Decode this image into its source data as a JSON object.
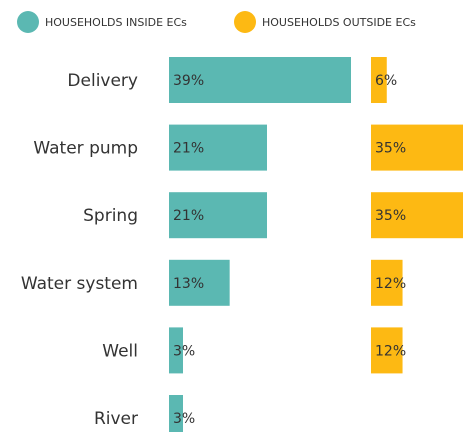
{
  "chart_data": {
    "type": "bar",
    "categories": [
      "Delivery",
      "Water pump",
      "Spring",
      "Water system",
      "Well",
      "River"
    ],
    "series": [
      {
        "name": "HOUSEHOLDS INSIDE ECs",
        "color": "#5bb8b2",
        "values": [
          39,
          21,
          21,
          13,
          3,
          3
        ],
        "value_labels": [
          "39%",
          "21%",
          "21%",
          "13%",
          "3%",
          "3%"
        ]
      },
      {
        "name": "HOUSEHOLDS OUTSIDE ECs",
        "color": "#fdb913",
        "values": [
          6,
          35,
          35,
          12,
          12,
          null
        ],
        "value_labels": [
          "6%",
          "35%",
          "35%",
          "12%",
          "12%",
          null
        ]
      }
    ]
  }
}
